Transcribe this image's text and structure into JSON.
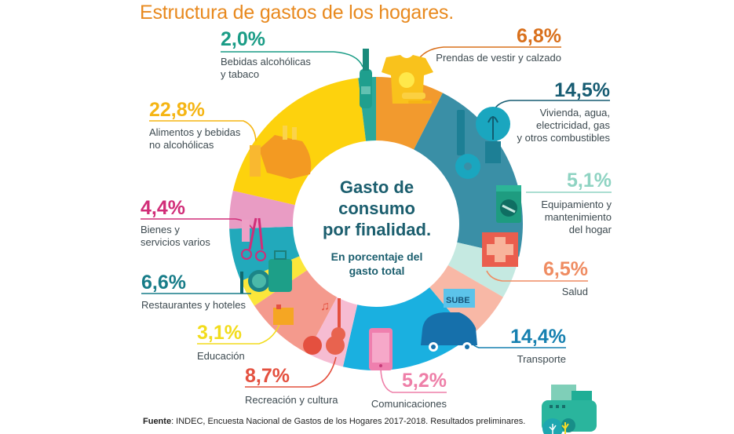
{
  "title": "Estructura de gastos de los hogares.",
  "center": {
    "title_lines": [
      "Gasto de",
      "consumo",
      "por finalidad."
    ],
    "subtitle_lines": [
      "En porcentaje del",
      "gasto total"
    ]
  },
  "source": {
    "label": "Fuente",
    "text": ": INDEC, Encuesta Nacional de Gastos de los Hogares 2017-2018. Resultados preliminares."
  },
  "categories": [
    {
      "id": "bebidas",
      "pct": "2,0%",
      "lines": [
        "Bebidas alcohólicas",
        "y tabaco"
      ],
      "color": "#1a9c86",
      "ring": "#2ba89a",
      "icon": "bottle-icon"
    },
    {
      "id": "prendas",
      "pct": "6,8%",
      "lines": [
        "Prendas de vestir y calzado"
      ],
      "color": "#d9701c",
      "ring": "#f29a2e",
      "icon": "tshirt-icon"
    },
    {
      "id": "vivienda",
      "pct": "14,5%",
      "lines": [
        "Vivienda, agua,",
        "electricidad, gas",
        "y otros combustibles"
      ],
      "color": "#175c72",
      "ring": "#3a8fa6",
      "icon": "key-bulb-icon"
    },
    {
      "id": "equipamiento",
      "pct": "5,1%",
      "lines": [
        "Equipamiento y",
        "mantenimiento",
        "del hogar"
      ],
      "color": "#8ed3c2",
      "ring": "#c5e9e1",
      "icon": "washing-machine-icon"
    },
    {
      "id": "salud",
      "pct": "6,5%",
      "lines": [
        "Salud"
      ],
      "color": "#ef8c62",
      "ring": "#f8b8a6",
      "icon": "medical-cross-icon"
    },
    {
      "id": "transporte",
      "pct": "14,4%",
      "lines": [
        "Transporte"
      ],
      "color": "#1680b0",
      "ring": "#1ab0e0",
      "icon": "car-icon"
    },
    {
      "id": "comunicaciones",
      "pct": "5,2%",
      "lines": [
        "Comunicaciones"
      ],
      "color": "#ee7fa8",
      "ring": "#f6bcd2",
      "icon": "phone-icon"
    },
    {
      "id": "recreacion",
      "pct": "8,7%",
      "lines": [
        "Recreación y cultura"
      ],
      "color": "#e4503f",
      "ring": "#f49a8d",
      "icon": "guitar-icon"
    },
    {
      "id": "educacion",
      "pct": "3,1%",
      "lines": [
        "Educación"
      ],
      "color": "#f2dc1c",
      "ring": "#fbe63a",
      "icon": "book-icon"
    },
    {
      "id": "restaurantes",
      "pct": "6,6%",
      "lines": [
        "Restaurantes y hoteles"
      ],
      "color": "#177c88",
      "ring": "#22a9bb",
      "icon": "plate-suitcase-icon"
    },
    {
      "id": "bienes",
      "pct": "4,4%",
      "lines": [
        "Bienes y",
        "servicios varios"
      ],
      "color": "#d12d78",
      "ring": "#e99cc4",
      "icon": "scissors-icon"
    },
    {
      "id": "alimentos",
      "pct": "22,8%",
      "lines": [
        "Alimentos y bebidas",
        "no alcohólicas"
      ],
      "color": "#f5b514",
      "ring": "#fdd20d",
      "icon": "chicken-icon"
    }
  ],
  "chart_data": {
    "type": "pie",
    "title": "Estructura de gastos de los hogares.",
    "subtitle": "Gasto de consumo por finalidad. En porcentaje del gasto total",
    "categories": [
      "Alimentos y bebidas no alcohólicas",
      "Bebidas alcohólicas y tabaco",
      "Prendas de vestir y calzado",
      "Vivienda, agua, electricidad, gas y otros combustibles",
      "Equipamiento y mantenimiento del hogar",
      "Salud",
      "Transporte",
      "Comunicaciones",
      "Recreación y cultura",
      "Educación",
      "Restaurantes y hoteles",
      "Bienes y servicios varios"
    ],
    "values": [
      22.8,
      2.0,
      6.8,
      14.5,
      5.1,
      6.5,
      14.4,
      5.2,
      8.7,
      3.1,
      6.6,
      4.4
    ],
    "unit": "%",
    "donut": true,
    "source": "INDEC, Encuesta Nacional de Gastos de los Hogares 2017-2018. Resultados preliminares."
  }
}
